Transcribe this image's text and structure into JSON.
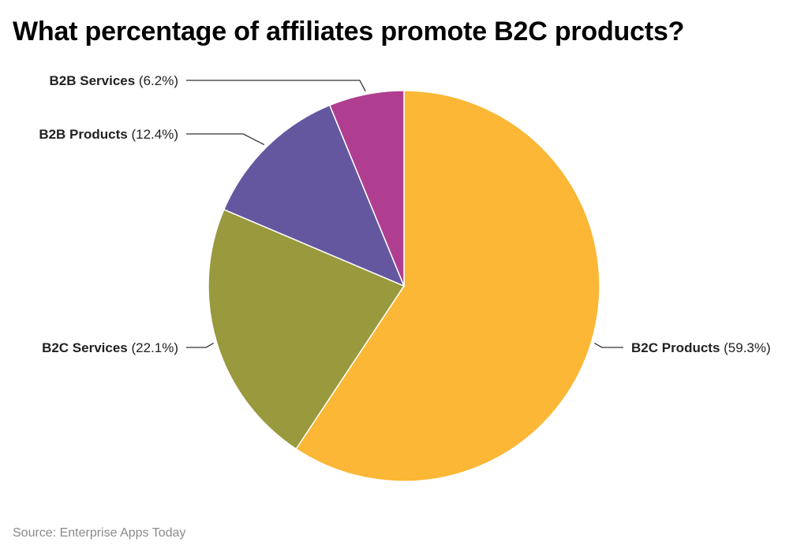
{
  "title": "What percentage of affiliates promote B2C products?",
  "source": "Source: Enterprise Apps Today",
  "chart_data": {
    "type": "pie",
    "title": "What percentage of affiliates promote B2C products?",
    "start_angle_deg": 0,
    "direction": "clockwise",
    "slices": [
      {
        "name": "B2C Products",
        "value": 59.3,
        "display": "(59.3%)",
        "color": "#fbb735"
      },
      {
        "name": "B2C Services",
        "value": 22.1,
        "display": "(22.1%)",
        "color": "#99993d"
      },
      {
        "name": "B2B Products",
        "value": 12.4,
        "display": "(12.4%)",
        "color": "#64579f"
      },
      {
        "name": "B2B Services",
        "value": 6.2,
        "display": "(6.2%)",
        "color": "#b03e90"
      }
    ]
  }
}
